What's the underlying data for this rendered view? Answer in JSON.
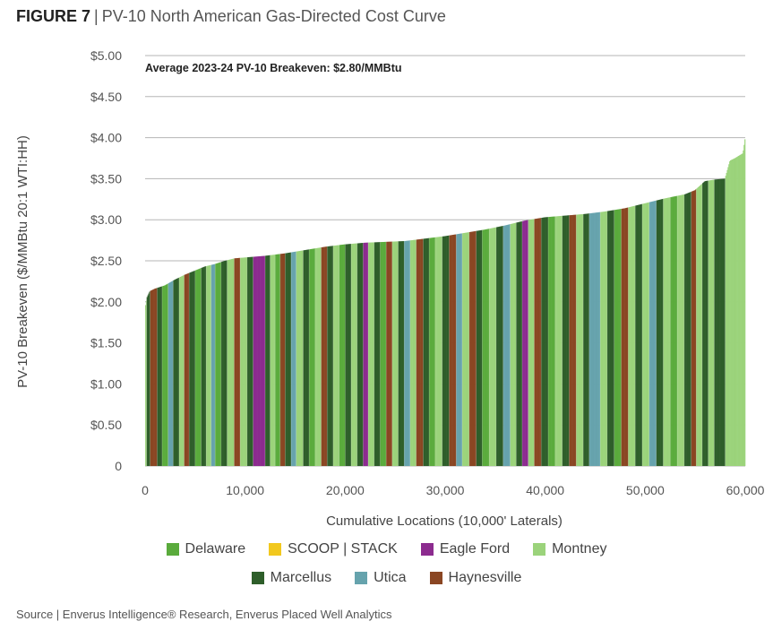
{
  "figure": {
    "label": "FIGURE 7",
    "separator": "|",
    "title": "PV-10 North American Gas-Directed Cost Curve",
    "annotation": "Average 2023-24 PV-10 Breakeven: $2.80/MMBtu",
    "source": "Source | Enverus Intelligence® Research, Enverus Placed Well Analytics"
  },
  "chart_data": {
    "type": "bar",
    "title": "PV-10 North American Gas-Directed Cost Curve",
    "xlabel": "Cumulative Locations (10,000' Laterals)",
    "ylabel": "PV-10 Breakeven ($/MMBtu 20:1 WTI:HH)",
    "xlim": [
      0,
      60000
    ],
    "ylim": [
      0,
      5
    ],
    "xticks": [
      0,
      10000,
      20000,
      30000,
      40000,
      50000,
      60000
    ],
    "xtick_labels": [
      "0",
      "10,000",
      "20,000",
      "30,000",
      "40,000",
      "50,000",
      "60,000"
    ],
    "yticks": [
      0,
      0.5,
      1,
      1.5,
      2,
      2.5,
      3,
      3.5,
      4,
      4.5,
      5
    ],
    "ytick_labels": [
      "0",
      "$0.50",
      "$1.00",
      "$1.50",
      "$2.00",
      "$2.50",
      "$3.00",
      "$3.50",
      "$4.00",
      "$4.50",
      "$5.00"
    ],
    "grid": "horizontal",
    "legend_position": "bottom",
    "curve_points": [
      [
        0,
        1.9
      ],
      [
        200,
        2.05
      ],
      [
        500,
        2.13
      ],
      [
        1000,
        2.16
      ],
      [
        2000,
        2.2
      ],
      [
        3000,
        2.27
      ],
      [
        4000,
        2.33
      ],
      [
        5000,
        2.38
      ],
      [
        6000,
        2.43
      ],
      [
        7000,
        2.46
      ],
      [
        8000,
        2.5
      ],
      [
        9000,
        2.53
      ],
      [
        10000,
        2.54
      ],
      [
        12000,
        2.56
      ],
      [
        14000,
        2.59
      ],
      [
        16000,
        2.63
      ],
      [
        18000,
        2.67
      ],
      [
        20000,
        2.7
      ],
      [
        22000,
        2.72
      ],
      [
        24000,
        2.73
      ],
      [
        26000,
        2.74
      ],
      [
        28000,
        2.77
      ],
      [
        30000,
        2.8
      ],
      [
        32000,
        2.84
      ],
      [
        34000,
        2.88
      ],
      [
        36000,
        2.93
      ],
      [
        38000,
        2.99
      ],
      [
        40000,
        3.03
      ],
      [
        42000,
        3.05
      ],
      [
        44000,
        3.07
      ],
      [
        46000,
        3.1
      ],
      [
        48000,
        3.14
      ],
      [
        50000,
        3.2
      ],
      [
        52000,
        3.26
      ],
      [
        54000,
        3.31
      ],
      [
        55000,
        3.36
      ],
      [
        56000,
        3.47
      ],
      [
        57000,
        3.49
      ],
      [
        58000,
        3.5
      ],
      [
        58500,
        3.72
      ],
      [
        59000,
        3.75
      ],
      [
        59400,
        3.78
      ],
      [
        59800,
        3.81
      ],
      [
        60000,
        3.98
      ]
    ],
    "segments": [
      {
        "start": 0,
        "end": 150,
        "basin": "Montney"
      },
      {
        "start": 150,
        "end": 500,
        "basin": "Marcellus"
      },
      {
        "start": 500,
        "end": 1200,
        "basin": "Haynesville"
      },
      {
        "start": 1200,
        "end": 1700,
        "basin": "Marcellus"
      },
      {
        "start": 1700,
        "end": 2300,
        "basin": "Delaware"
      },
      {
        "start": 2300,
        "end": 2800,
        "basin": "Utica"
      },
      {
        "start": 2800,
        "end": 3400,
        "basin": "Marcellus"
      },
      {
        "start": 3400,
        "end": 3900,
        "basin": "Montney"
      },
      {
        "start": 3900,
        "end": 4400,
        "basin": "Haynesville"
      },
      {
        "start": 4400,
        "end": 5000,
        "basin": "Marcellus"
      },
      {
        "start": 5000,
        "end": 5600,
        "basin": "Delaware"
      },
      {
        "start": 5600,
        "end": 6100,
        "basin": "Marcellus"
      },
      {
        "start": 6100,
        "end": 6600,
        "basin": "Montney"
      },
      {
        "start": 6600,
        "end": 7000,
        "basin": "Utica"
      },
      {
        "start": 7000,
        "end": 7600,
        "basin": "Delaware"
      },
      {
        "start": 7600,
        "end": 8200,
        "basin": "Marcellus"
      },
      {
        "start": 8200,
        "end": 8900,
        "basin": "Montney"
      },
      {
        "start": 8900,
        "end": 9500,
        "basin": "Haynesville"
      },
      {
        "start": 9500,
        "end": 10200,
        "basin": "Montney"
      },
      {
        "start": 10200,
        "end": 10800,
        "basin": "Marcellus"
      },
      {
        "start": 10800,
        "end": 12000,
        "basin": "Eagle Ford"
      },
      {
        "start": 12000,
        "end": 12500,
        "basin": "Marcellus"
      },
      {
        "start": 12500,
        "end": 13000,
        "basin": "Montney"
      },
      {
        "start": 13000,
        "end": 13500,
        "basin": "Delaware"
      },
      {
        "start": 13500,
        "end": 14000,
        "basin": "Haynesville"
      },
      {
        "start": 14000,
        "end": 14600,
        "basin": "Marcellus"
      },
      {
        "start": 14600,
        "end": 15100,
        "basin": "Utica"
      },
      {
        "start": 15100,
        "end": 15800,
        "basin": "Montney"
      },
      {
        "start": 15800,
        "end": 16400,
        "basin": "Marcellus"
      },
      {
        "start": 16400,
        "end": 17000,
        "basin": "Delaware"
      },
      {
        "start": 17000,
        "end": 17600,
        "basin": "Montney"
      },
      {
        "start": 17600,
        "end": 18200,
        "basin": "Haynesville"
      },
      {
        "start": 18200,
        "end": 18800,
        "basin": "Marcellus"
      },
      {
        "start": 18800,
        "end": 19400,
        "basin": "Montney"
      },
      {
        "start": 19400,
        "end": 20000,
        "basin": "Delaware"
      },
      {
        "start": 20000,
        "end": 20600,
        "basin": "Marcellus"
      },
      {
        "start": 20600,
        "end": 21200,
        "basin": "Montney"
      },
      {
        "start": 21200,
        "end": 21800,
        "basin": "Marcellus"
      },
      {
        "start": 21800,
        "end": 22300,
        "basin": "Eagle Ford"
      },
      {
        "start": 22300,
        "end": 22900,
        "basin": "Montney"
      },
      {
        "start": 22900,
        "end": 23500,
        "basin": "Marcellus"
      },
      {
        "start": 23500,
        "end": 24100,
        "basin": "Delaware"
      },
      {
        "start": 24100,
        "end": 24700,
        "basin": "Haynesville"
      },
      {
        "start": 24700,
        "end": 25300,
        "basin": "Montney"
      },
      {
        "start": 25300,
        "end": 25900,
        "basin": "Marcellus"
      },
      {
        "start": 25900,
        "end": 26500,
        "basin": "Utica"
      },
      {
        "start": 26500,
        "end": 27100,
        "basin": "Montney"
      },
      {
        "start": 27100,
        "end": 27800,
        "basin": "Haynesville"
      },
      {
        "start": 27800,
        "end": 28400,
        "basin": "Marcellus"
      },
      {
        "start": 28400,
        "end": 29000,
        "basin": "Delaware"
      },
      {
        "start": 29000,
        "end": 29700,
        "basin": "Montney"
      },
      {
        "start": 29700,
        "end": 30400,
        "basin": "Marcellus"
      },
      {
        "start": 30400,
        "end": 31100,
        "basin": "Haynesville"
      },
      {
        "start": 31100,
        "end": 31700,
        "basin": "Utica"
      },
      {
        "start": 31700,
        "end": 32400,
        "basin": "Montney"
      },
      {
        "start": 32400,
        "end": 33100,
        "basin": "Haynesville"
      },
      {
        "start": 33100,
        "end": 33700,
        "basin": "Marcellus"
      },
      {
        "start": 33700,
        "end": 34400,
        "basin": "Delaware"
      },
      {
        "start": 34400,
        "end": 35100,
        "basin": "Montney"
      },
      {
        "start": 35100,
        "end": 35800,
        "basin": "Marcellus"
      },
      {
        "start": 35800,
        "end": 36500,
        "basin": "Utica"
      },
      {
        "start": 36500,
        "end": 37100,
        "basin": "Montney"
      },
      {
        "start": 37100,
        "end": 37700,
        "basin": "Marcellus"
      },
      {
        "start": 37700,
        "end": 38300,
        "basin": "Eagle Ford"
      },
      {
        "start": 38300,
        "end": 38900,
        "basin": "Montney"
      },
      {
        "start": 38900,
        "end": 39600,
        "basin": "Haynesville"
      },
      {
        "start": 39600,
        "end": 40300,
        "basin": "Marcellus"
      },
      {
        "start": 40300,
        "end": 41000,
        "basin": "Delaware"
      },
      {
        "start": 41000,
        "end": 41700,
        "basin": "Montney"
      },
      {
        "start": 41700,
        "end": 42400,
        "basin": "Marcellus"
      },
      {
        "start": 42400,
        "end": 43100,
        "basin": "Haynesville"
      },
      {
        "start": 43100,
        "end": 43800,
        "basin": "Montney"
      },
      {
        "start": 43800,
        "end": 44400,
        "basin": "Marcellus"
      },
      {
        "start": 44400,
        "end": 45500,
        "basin": "Utica"
      },
      {
        "start": 45500,
        "end": 46200,
        "basin": "Montney"
      },
      {
        "start": 46200,
        "end": 46900,
        "basin": "Marcellus"
      },
      {
        "start": 46900,
        "end": 47600,
        "basin": "Delaware"
      },
      {
        "start": 47600,
        "end": 48300,
        "basin": "Haynesville"
      },
      {
        "start": 48300,
        "end": 49000,
        "basin": "Montney"
      },
      {
        "start": 49000,
        "end": 49700,
        "basin": "Marcellus"
      },
      {
        "start": 49700,
        "end": 50400,
        "basin": "Montney"
      },
      {
        "start": 50400,
        "end": 51100,
        "basin": "Utica"
      },
      {
        "start": 51100,
        "end": 51800,
        "basin": "Marcellus"
      },
      {
        "start": 51800,
        "end": 52500,
        "basin": "Montney"
      },
      {
        "start": 52500,
        "end": 53200,
        "basin": "Delaware"
      },
      {
        "start": 53200,
        "end": 53900,
        "basin": "Montney"
      },
      {
        "start": 53900,
        "end": 54600,
        "basin": "Marcellus"
      },
      {
        "start": 54600,
        "end": 55100,
        "basin": "Haynesville"
      },
      {
        "start": 55100,
        "end": 55700,
        "basin": "Montney"
      },
      {
        "start": 55700,
        "end": 56300,
        "basin": "Marcellus"
      },
      {
        "start": 56300,
        "end": 56900,
        "basin": "Montney"
      },
      {
        "start": 56900,
        "end": 58000,
        "basin": "Marcellus"
      },
      {
        "start": 58000,
        "end": 60000,
        "basin": "Montney"
      }
    ],
    "series": [
      {
        "name": "Delaware",
        "color": "#5aab3c"
      },
      {
        "name": "SCOOP | STACK",
        "color": "#f2c81e"
      },
      {
        "name": "Eagle Ford",
        "color": "#8c2b8f"
      },
      {
        "name": "Montney",
        "color": "#9bd37b"
      },
      {
        "name": "Marcellus",
        "color": "#2e5e2a"
      },
      {
        "name": "Utica",
        "color": "#66a3ad"
      },
      {
        "name": "Haynesville",
        "color": "#8a4623"
      }
    ]
  },
  "legend": {
    "row1": [
      "Delaware",
      "SCOOP | STACK",
      "Eagle Ford",
      "Montney"
    ],
    "row2": [
      "Marcellus",
      "Utica",
      "Haynesville"
    ]
  }
}
